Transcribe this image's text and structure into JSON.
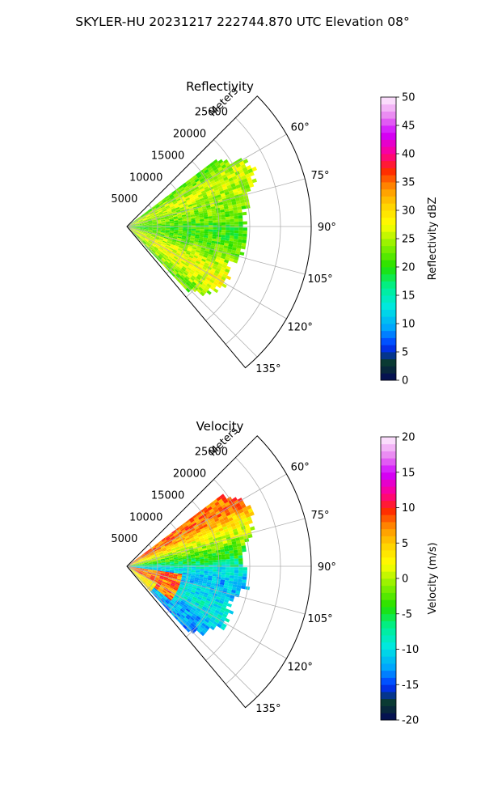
{
  "suptitle": "SKYLER-HU  20231217  222744.870 UTC Elevation 08°",
  "chart_data": [
    {
      "type": "heatmap",
      "projection": "polar-sector",
      "title": "Reflectivity",
      "range_label": "Meters",
      "range_ticks": [
        5000,
        10000,
        15000,
        20000,
        25000
      ],
      "range_max": 30000,
      "azimuth_ticks": [
        "60°",
        "75°",
        "90°",
        "105°",
        "120°",
        "135°"
      ],
      "azimuth_tick_values": [
        60,
        75,
        90,
        105,
        120,
        135
      ],
      "azimuth_range": [
        45,
        140
      ],
      "data_azimuth_range": [
        53,
        137
      ],
      "grid": true,
      "colorbar": {
        "label": "Reflectivity dBZ",
        "min": 0,
        "max": 50,
        "ticks": [
          0,
          5,
          10,
          15,
          20,
          25,
          30,
          35,
          40,
          45,
          50
        ]
      },
      "gates": [
        {
          "az": 55,
          "r_max": 18000,
          "dominant": 22
        },
        {
          "az": 60,
          "r_max": 21000,
          "dominant": 25
        },
        {
          "az": 65,
          "r_max": 22000,
          "dominant": 26
        },
        {
          "az": 70,
          "r_max": 21000,
          "dominant": 25
        },
        {
          "az": 75,
          "r_max": 20000,
          "dominant": 24
        },
        {
          "az": 80,
          "r_max": 19000,
          "dominant": 23
        },
        {
          "az": 85,
          "r_max": 18000,
          "dominant": 22
        },
        {
          "az": 90,
          "r_max": 19000,
          "dominant": 21
        },
        {
          "az": 95,
          "r_max": 19000,
          "dominant": 21
        },
        {
          "az": 100,
          "r_max": 19000,
          "dominant": 22
        },
        {
          "az": 105,
          "r_max": 18000,
          "dominant": 23
        },
        {
          "az": 110,
          "r_max": 17000,
          "dominant": 25
        },
        {
          "az": 115,
          "r_max": 18000,
          "dominant": 27
        },
        {
          "az": 120,
          "r_max": 18000,
          "dominant": 28
        },
        {
          "az": 125,
          "r_max": 17000,
          "dominant": 26
        },
        {
          "az": 130,
          "r_max": 16000,
          "dominant": 24
        },
        {
          "az": 135,
          "r_max": 14000,
          "dominant": 23
        }
      ]
    },
    {
      "type": "heatmap",
      "projection": "polar-sector",
      "title": "Velocity",
      "range_label": "Meters",
      "range_ticks": [
        5000,
        10000,
        15000,
        20000,
        25000
      ],
      "range_max": 30000,
      "azimuth_ticks": [
        "60°",
        "75°",
        "90°",
        "105°",
        "120°",
        "135°"
      ],
      "azimuth_tick_values": [
        60,
        75,
        90,
        105,
        120,
        135
      ],
      "azimuth_range": [
        45,
        140
      ],
      "data_azimuth_range": [
        53,
        137
      ],
      "grid": true,
      "colorbar": {
        "label": "Velocity (m/s)",
        "min": -20,
        "max": 20,
        "ticks": [
          -20,
          -15,
          -10,
          -5,
          0,
          5,
          10,
          15,
          20
        ]
      },
      "gates": [
        {
          "az": 55,
          "r_max": 19000,
          "dominant": 8
        },
        {
          "az": 60,
          "r_max": 21000,
          "dominant": 8
        },
        {
          "az": 65,
          "r_max": 22000,
          "dominant": 5
        },
        {
          "az": 70,
          "r_max": 21000,
          "dominant": 2
        },
        {
          "az": 75,
          "r_max": 20000,
          "dominant": 0
        },
        {
          "az": 80,
          "r_max": 19000,
          "dominant": -3
        },
        {
          "az": 85,
          "r_max": 18000,
          "dominant": -5
        },
        {
          "az": 90,
          "r_max": 19000,
          "dominant": -9
        },
        {
          "az": 95,
          "r_max": 19000,
          "dominant": -11
        },
        {
          "az": 100,
          "r_max": 19000,
          "dominant": -12
        },
        {
          "az": 105,
          "r_max": 18000,
          "dominant": -11
        },
        {
          "az": 110,
          "r_max": 17000,
          "dominant": -10
        },
        {
          "az": 115,
          "r_max": 18000,
          "dominant": -9
        },
        {
          "az": 120,
          "r_max": 18000,
          "dominant": -10
        },
        {
          "az": 125,
          "r_max": 17000,
          "dominant": -12
        },
        {
          "az": 130,
          "r_max": 16000,
          "dominant": -12
        },
        {
          "az": 135,
          "r_max": 14000,
          "dominant": -13
        }
      ]
    }
  ]
}
